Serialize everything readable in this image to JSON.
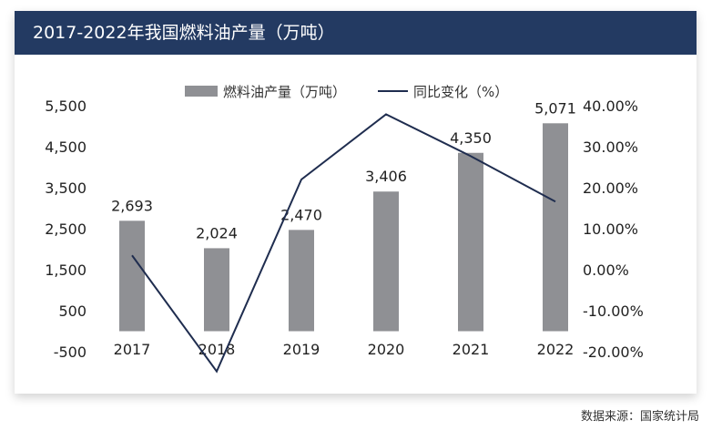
{
  "chart_data": {
    "type": "bar+line",
    "title": "2017-2022年我国燃料油产量（万吨）",
    "categories": [
      "2017",
      "2018",
      "2019",
      "2020",
      "2021",
      "2022"
    ],
    "series": [
      {
        "name": "燃料油产量（万吨）",
        "type": "bar",
        "axis": "left",
        "values": [
          2693,
          2024,
          2470,
          3406,
          4350,
          5071
        ],
        "labels": [
          "2,693",
          "2,024",
          "2,470",
          "3,406",
          "4,350",
          "5,071"
        ],
        "color": "#8f9094"
      },
      {
        "name": "同比变化（%）",
        "type": "line",
        "axis": "right",
        "values": [
          3.5,
          -24.8,
          22.0,
          37.9,
          27.7,
          16.6
        ],
        "color": "#1f2d4f"
      }
    ],
    "left_axis": {
      "ylim": [
        -500,
        5500
      ],
      "ticks": [
        "5,500",
        "4,500",
        "3,500",
        "2,500",
        "1,500",
        "500",
        "-500"
      ],
      "tick_values": [
        5500,
        4500,
        3500,
        2500,
        1500,
        500,
        -500
      ]
    },
    "right_axis": {
      "ylim": [
        -20,
        40
      ],
      "ticks": [
        "40.00%",
        "30.00%",
        "20.00%",
        "10.00%",
        "0.00%",
        "-10.00%",
        "-20.00%"
      ],
      "tick_values": [
        40,
        30,
        20,
        10,
        0,
        -10,
        -20
      ]
    },
    "legend": "top-center",
    "grid": false
  },
  "source": "数据来源：国家统计局"
}
